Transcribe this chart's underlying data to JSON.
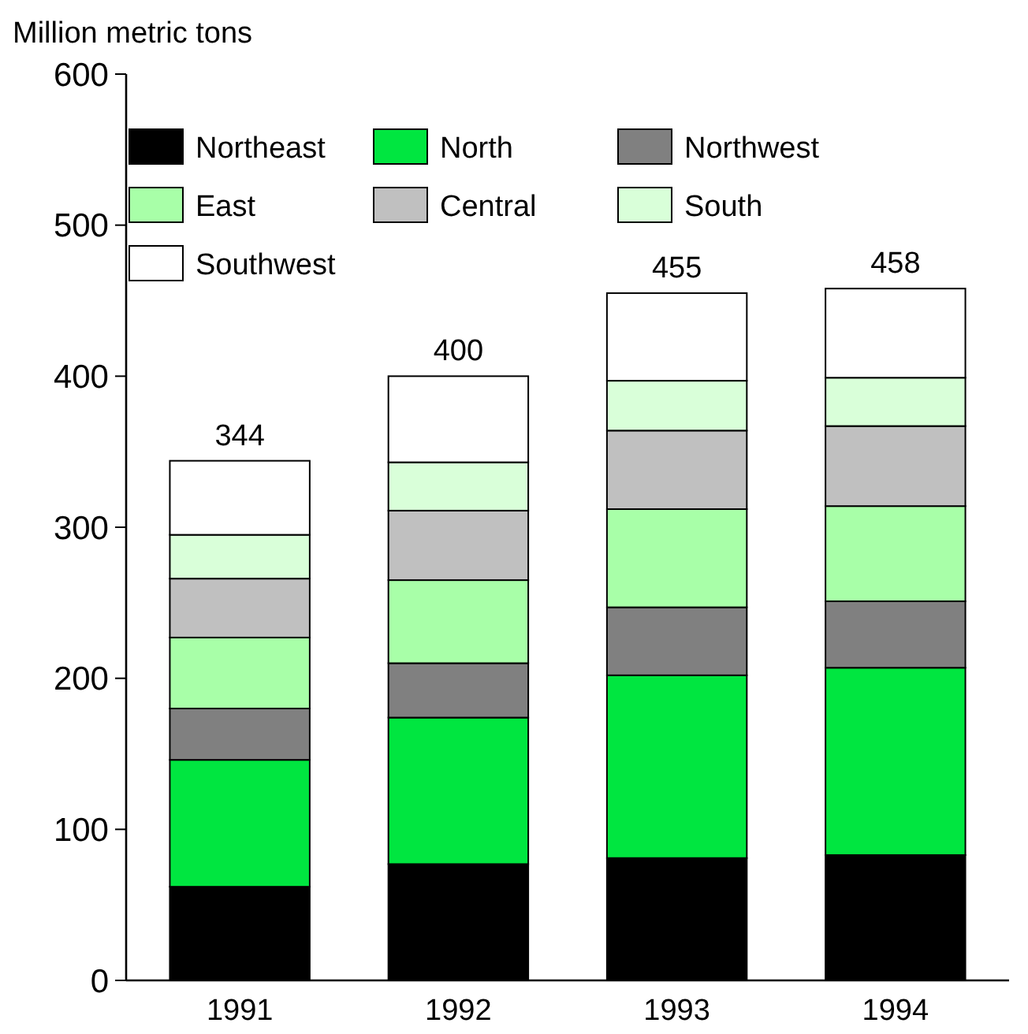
{
  "chart_data": {
    "type": "bar",
    "stacked": true,
    "ylabel": "Million metric tons",
    "categories": [
      "1991",
      "1992",
      "1993",
      "1994"
    ],
    "series": [
      {
        "name": "Northeast",
        "color": "#000000",
        "values": [
          62,
          77,
          81,
          83
        ]
      },
      {
        "name": "North",
        "color": "#00e640",
        "values": [
          84,
          97,
          121,
          124
        ]
      },
      {
        "name": "Northwest",
        "color": "#808080",
        "values": [
          34,
          36,
          45,
          44
        ]
      },
      {
        "name": "East",
        "color": "#a8ffa8",
        "values": [
          47,
          55,
          65,
          63
        ]
      },
      {
        "name": "Central",
        "color": "#c0c0c0",
        "values": [
          39,
          46,
          52,
          53
        ]
      },
      {
        "name": "South",
        "color": "#d9ffd9",
        "values": [
          29,
          32,
          33,
          32
        ]
      },
      {
        "name": "Southwest",
        "color": "#ffffff",
        "values": [
          49,
          57,
          58,
          59
        ]
      }
    ],
    "totals": [
      "344",
      "400",
      "455",
      "458"
    ],
    "ylim": [
      0,
      600
    ],
    "yticks": [
      0,
      100,
      200,
      300,
      400,
      500,
      600
    ],
    "legend": "top",
    "grid": false
  }
}
